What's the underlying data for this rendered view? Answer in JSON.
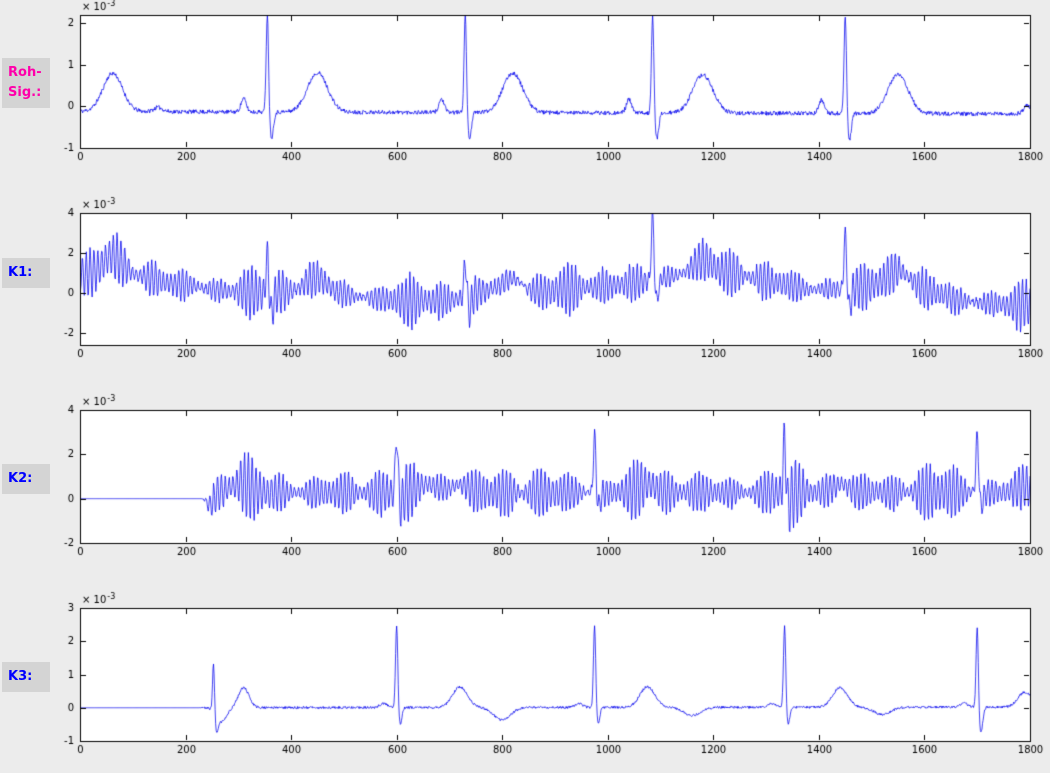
{
  "figure": {
    "bg_color": "#ececec",
    "plot_bg_color": "#ffffff",
    "axis_color": "#000000",
    "line_color": "#0000ee",
    "label_box_color": "#d4d4d4"
  },
  "labels": {
    "roh": {
      "line1": "Roh-",
      "line2": "Sig.:",
      "color": "#ff00aa"
    },
    "k1": {
      "text": "K1:",
      "color": "#0000ff"
    },
    "k2": {
      "text": "K2:",
      "color": "#0000ff"
    },
    "k3": {
      "text": "K3:",
      "color": "#0000ff"
    }
  },
  "chart_data": [
    {
      "type": "line",
      "name": "Roh-Sig",
      "line_color": "#0000ee",
      "xlim": [
        0,
        1800
      ],
      "ylim": [
        -1,
        2.2
      ],
      "unit": "1e-3",
      "x_ticks": [
        0,
        200,
        400,
        600,
        800,
        1000,
        1200,
        1400,
        1600,
        1800
      ],
      "y_ticks": [
        -1,
        0,
        1,
        2
      ],
      "scale_base": "× 10",
      "scale_exp": "-3",
      "signal": {
        "seed": 11,
        "drift": [
          [
            0,
            -0.12
          ],
          [
            1800,
            -0.18
          ]
        ],
        "noise": 0.05,
        "osc": null,
        "bumps": [
          [
            62,
            0.92,
            26
          ],
          [
            310,
            0.32,
            7
          ],
          [
            450,
            0.95,
            27
          ],
          [
            685,
            0.32,
            7
          ],
          [
            820,
            0.95,
            27
          ],
          [
            1040,
            0.32,
            7
          ],
          [
            1180,
            0.92,
            27
          ],
          [
            1405,
            0.32,
            7
          ],
          [
            1550,
            0.95,
            27
          ],
          [
            148,
            0.1,
            12
          ],
          [
            1795,
            0.2,
            10
          ]
        ],
        "spikes": [
          [
            355,
            2.4,
            3.2
          ],
          [
            730,
            2.4,
            3.2
          ],
          [
            1085,
            2.4,
            3.2
          ],
          [
            1450,
            2.4,
            3.2
          ]
        ],
        "undershoots": [
          [
            363,
            -0.62,
            5
          ],
          [
            738,
            -0.62,
            5
          ],
          [
            1093,
            -0.62,
            5
          ],
          [
            1458,
            -0.62,
            5
          ]
        ],
        "gate": null
      }
    },
    {
      "type": "line",
      "name": "K1",
      "line_color": "#0000ee",
      "xlim": [
        0,
        1800
      ],
      "ylim": [
        -2.6,
        4
      ],
      "unit": "1e-3",
      "x_ticks": [
        0,
        200,
        400,
        600,
        800,
        1000,
        1200,
        1400,
        1600,
        1800
      ],
      "y_ticks": [
        -2,
        0,
        2,
        4
      ],
      "scale_base": "× 10",
      "scale_exp": "-3",
      "signal": {
        "seed": 22,
        "drift": [
          [
            0,
            0.9
          ],
          [
            60,
            1.2
          ],
          [
            160,
            0.55
          ],
          [
            260,
            0.15
          ],
          [
            360,
            -0.05
          ],
          [
            430,
            0.25
          ],
          [
            520,
            -0.15
          ],
          [
            620,
            -0.45
          ],
          [
            700,
            -0.35
          ],
          [
            780,
            0.15
          ],
          [
            860,
            0.05
          ],
          [
            960,
            0.25
          ],
          [
            1060,
            0.55
          ],
          [
            1160,
            1.0
          ],
          [
            1230,
            1.05
          ],
          [
            1310,
            0.55
          ],
          [
            1390,
            0.15
          ],
          [
            1460,
            0.25
          ],
          [
            1560,
            0.55
          ],
          [
            1660,
            -0.35
          ],
          [
            1760,
            -0.65
          ],
          [
            1800,
            -0.55
          ]
        ],
        "noise": 0.12,
        "osc": {
          "period": 7.3,
          "amp": 0.8,
          "mod_period": 293,
          "mod_depth": 0.35
        },
        "bumps": [
          [
            62,
            0.7,
            25
          ],
          [
            450,
            0.6,
            25
          ],
          [
            820,
            0.6,
            25
          ],
          [
            1180,
            0.6,
            25
          ],
          [
            1550,
            0.6,
            25
          ]
        ],
        "spikes": [
          [
            355,
            2.1,
            3.2
          ],
          [
            730,
            1.9,
            3.2
          ],
          [
            1085,
            3.4,
            3.2
          ],
          [
            1450,
            2.9,
            3.2
          ]
        ],
        "undershoots": [
          [
            363,
            -0.9,
            5
          ],
          [
            738,
            -0.8,
            5
          ],
          [
            1093,
            -1.0,
            5
          ],
          [
            1458,
            -0.9,
            5
          ]
        ],
        "gate": null
      }
    },
    {
      "type": "line",
      "name": "K2",
      "line_color": "#0000ee",
      "xlim": [
        0,
        1800
      ],
      "ylim": [
        -2,
        4
      ],
      "unit": "1e-3",
      "x_ticks": [
        0,
        200,
        400,
        600,
        800,
        1000,
        1200,
        1400,
        1600,
        1800
      ],
      "y_ticks": [
        -2,
        0,
        2,
        4
      ],
      "scale_base": "× 10",
      "scale_exp": "-3",
      "signal": {
        "seed": 33,
        "drift": [
          [
            0,
            0
          ],
          [
            230,
            0
          ],
          [
            255,
            0.25
          ],
          [
            1800,
            0.3
          ]
        ],
        "noise": 0.1,
        "osc": {
          "period": 7.3,
          "amp": 0.85,
          "mod_period": 257,
          "mod_depth": 0.3,
          "start": 235
        },
        "bumps": [
          [
            245,
            -0.55,
            10
          ],
          [
            305,
            0.45,
            25
          ],
          [
            660,
            0.35,
            30
          ],
          [
            720,
            0.35,
            22
          ],
          [
            1075,
            0.35,
            22
          ],
          [
            1440,
            0.35,
            22
          ],
          [
            1790,
            0.3,
            20
          ]
        ],
        "spikes": [
          [
            600,
            2.7,
            3.2
          ],
          [
            975,
            2.6,
            3.2
          ],
          [
            1335,
            2.6,
            3.2
          ],
          [
            1700,
            2.7,
            3.2
          ]
        ],
        "undershoots": [
          [
            608,
            -0.6,
            5
          ],
          [
            983,
            -0.6,
            5
          ],
          [
            1343,
            -0.6,
            5
          ],
          [
            1708,
            -0.6,
            5
          ]
        ],
        "gate": {
          "x0": 228,
          "x1": 252
        }
      }
    },
    {
      "type": "line",
      "name": "K3",
      "line_color": "#0000ee",
      "xlim": [
        0,
        1800
      ],
      "ylim": [
        -1,
        3
      ],
      "unit": "1e-3",
      "x_ticks": [
        0,
        200,
        400,
        600,
        800,
        1000,
        1200,
        1400,
        1600,
        1800
      ],
      "y_ticks": [
        -1,
        0,
        1,
        2,
        3
      ],
      "scale_base": "× 10",
      "scale_exp": "-3",
      "signal": {
        "seed": 44,
        "drift": [
          [
            0,
            0
          ],
          [
            1800,
            0.02
          ]
        ],
        "noise": 0.035,
        "osc": null,
        "bumps": [
          [
            268,
            -0.42,
            14
          ],
          [
            310,
            0.6,
            14
          ],
          [
            575,
            0.12,
            10
          ],
          [
            720,
            0.62,
            20
          ],
          [
            800,
            -0.38,
            22
          ],
          [
            945,
            0.12,
            10
          ],
          [
            1075,
            0.62,
            20
          ],
          [
            1160,
            -0.25,
            22
          ],
          [
            1310,
            0.12,
            10
          ],
          [
            1440,
            0.58,
            20
          ],
          [
            1520,
            -0.22,
            22
          ],
          [
            1675,
            0.12,
            10
          ],
          [
            1790,
            0.45,
            18
          ]
        ],
        "spikes": [
          [
            253,
            1.5,
            2.6
          ],
          [
            600,
            2.5,
            3.0
          ],
          [
            975,
            2.45,
            3.0
          ],
          [
            1335,
            2.45,
            3.0
          ],
          [
            1700,
            2.5,
            3.0
          ]
        ],
        "undershoots": [
          [
            259,
            -0.5,
            4
          ],
          [
            607,
            -0.5,
            4
          ],
          [
            982,
            -0.5,
            4
          ],
          [
            1342,
            -0.5,
            4
          ],
          [
            1707,
            -0.75,
            5
          ]
        ],
        "gate": {
          "x0": 222,
          "x1": 242
        }
      }
    }
  ]
}
